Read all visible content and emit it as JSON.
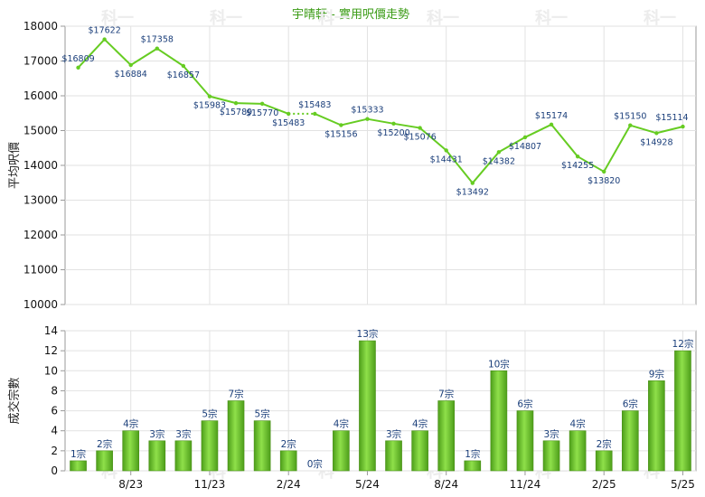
{
  "chart_data": [
    {
      "type": "line",
      "title": "宇晴軒 - 實用呎價走勢",
      "ylabel": "平均呎價",
      "ylim": [
        10000,
        18000
      ],
      "yticks": [
        10000,
        11000,
        12000,
        13000,
        14000,
        15000,
        16000,
        17000,
        18000
      ],
      "x_tick_labels": [
        {
          "index": 2,
          "label": "8/23"
        },
        {
          "index": 5,
          "label": "11/23"
        },
        {
          "index": 8,
          "label": "2/24"
        },
        {
          "index": 11,
          "label": "5/24"
        },
        {
          "index": 14,
          "label": "8/24"
        },
        {
          "index": 17,
          "label": "11/24"
        },
        {
          "index": 20,
          "label": "2/25"
        },
        {
          "index": 23,
          "label": "5/25"
        }
      ],
      "series": [
        {
          "color": "#66cc22",
          "values": [
            16809,
            17622,
            16884,
            17358,
            16857,
            15983,
            15789,
            15770,
            15483,
            15483,
            15156,
            15333,
            15200,
            15076,
            14431,
            13492,
            14382,
            14807,
            15174,
            14255,
            13820,
            15150,
            14928,
            15114
          ],
          "labels": [
            "$16809",
            "$17622",
            "$16884",
            "$17358",
            "$16857",
            "$15983",
            "$15789",
            "$15770",
            "$15483",
            "$15483",
            "$15156",
            "$15333",
            "$15200",
            "$15076",
            "$14431",
            "$13492",
            "$14382",
            "$14807",
            "$15174",
            "$14255",
            "$13820",
            "$15150",
            "$14928",
            "$15114"
          ],
          "dotted_segments": [
            [
              8,
              9
            ]
          ]
        }
      ],
      "grid": true
    },
    {
      "type": "bar",
      "ylabel": "成交宗數",
      "ylim": [
        0,
        14
      ],
      "yticks": [
        0,
        2,
        4,
        6,
        8,
        10,
        12,
        14
      ],
      "x_tick_labels": [
        {
          "index": 2,
          "label": "8/23"
        },
        {
          "index": 5,
          "label": "11/23"
        },
        {
          "index": 8,
          "label": "2/24"
        },
        {
          "index": 11,
          "label": "5/24"
        },
        {
          "index": 14,
          "label": "8/24"
        },
        {
          "index": 17,
          "label": "11/24"
        },
        {
          "index": 20,
          "label": "2/25"
        },
        {
          "index": 23,
          "label": "5/25"
        }
      ],
      "series": [
        {
          "color": "#6fc431",
          "values": [
            1,
            2,
            4,
            3,
            3,
            5,
            7,
            5,
            2,
            0,
            4,
            13,
            3,
            4,
            7,
            1,
            10,
            6,
            3,
            4,
            2,
            6,
            9,
            12
          ],
          "labels": [
            "1宗",
            "2宗",
            "4宗",
            "3宗",
            "3宗",
            "5宗",
            "7宗",
            "5宗",
            "2宗",
            "0宗",
            "4宗",
            "13宗",
            "3宗",
            "4宗",
            "7宗",
            "1宗",
            "10宗",
            "6宗",
            "3宗",
            "4宗",
            "2宗",
            "6宗",
            "9宗",
            "12宗"
          ]
        }
      ],
      "grid": true
    }
  ],
  "watermark": "科一"
}
